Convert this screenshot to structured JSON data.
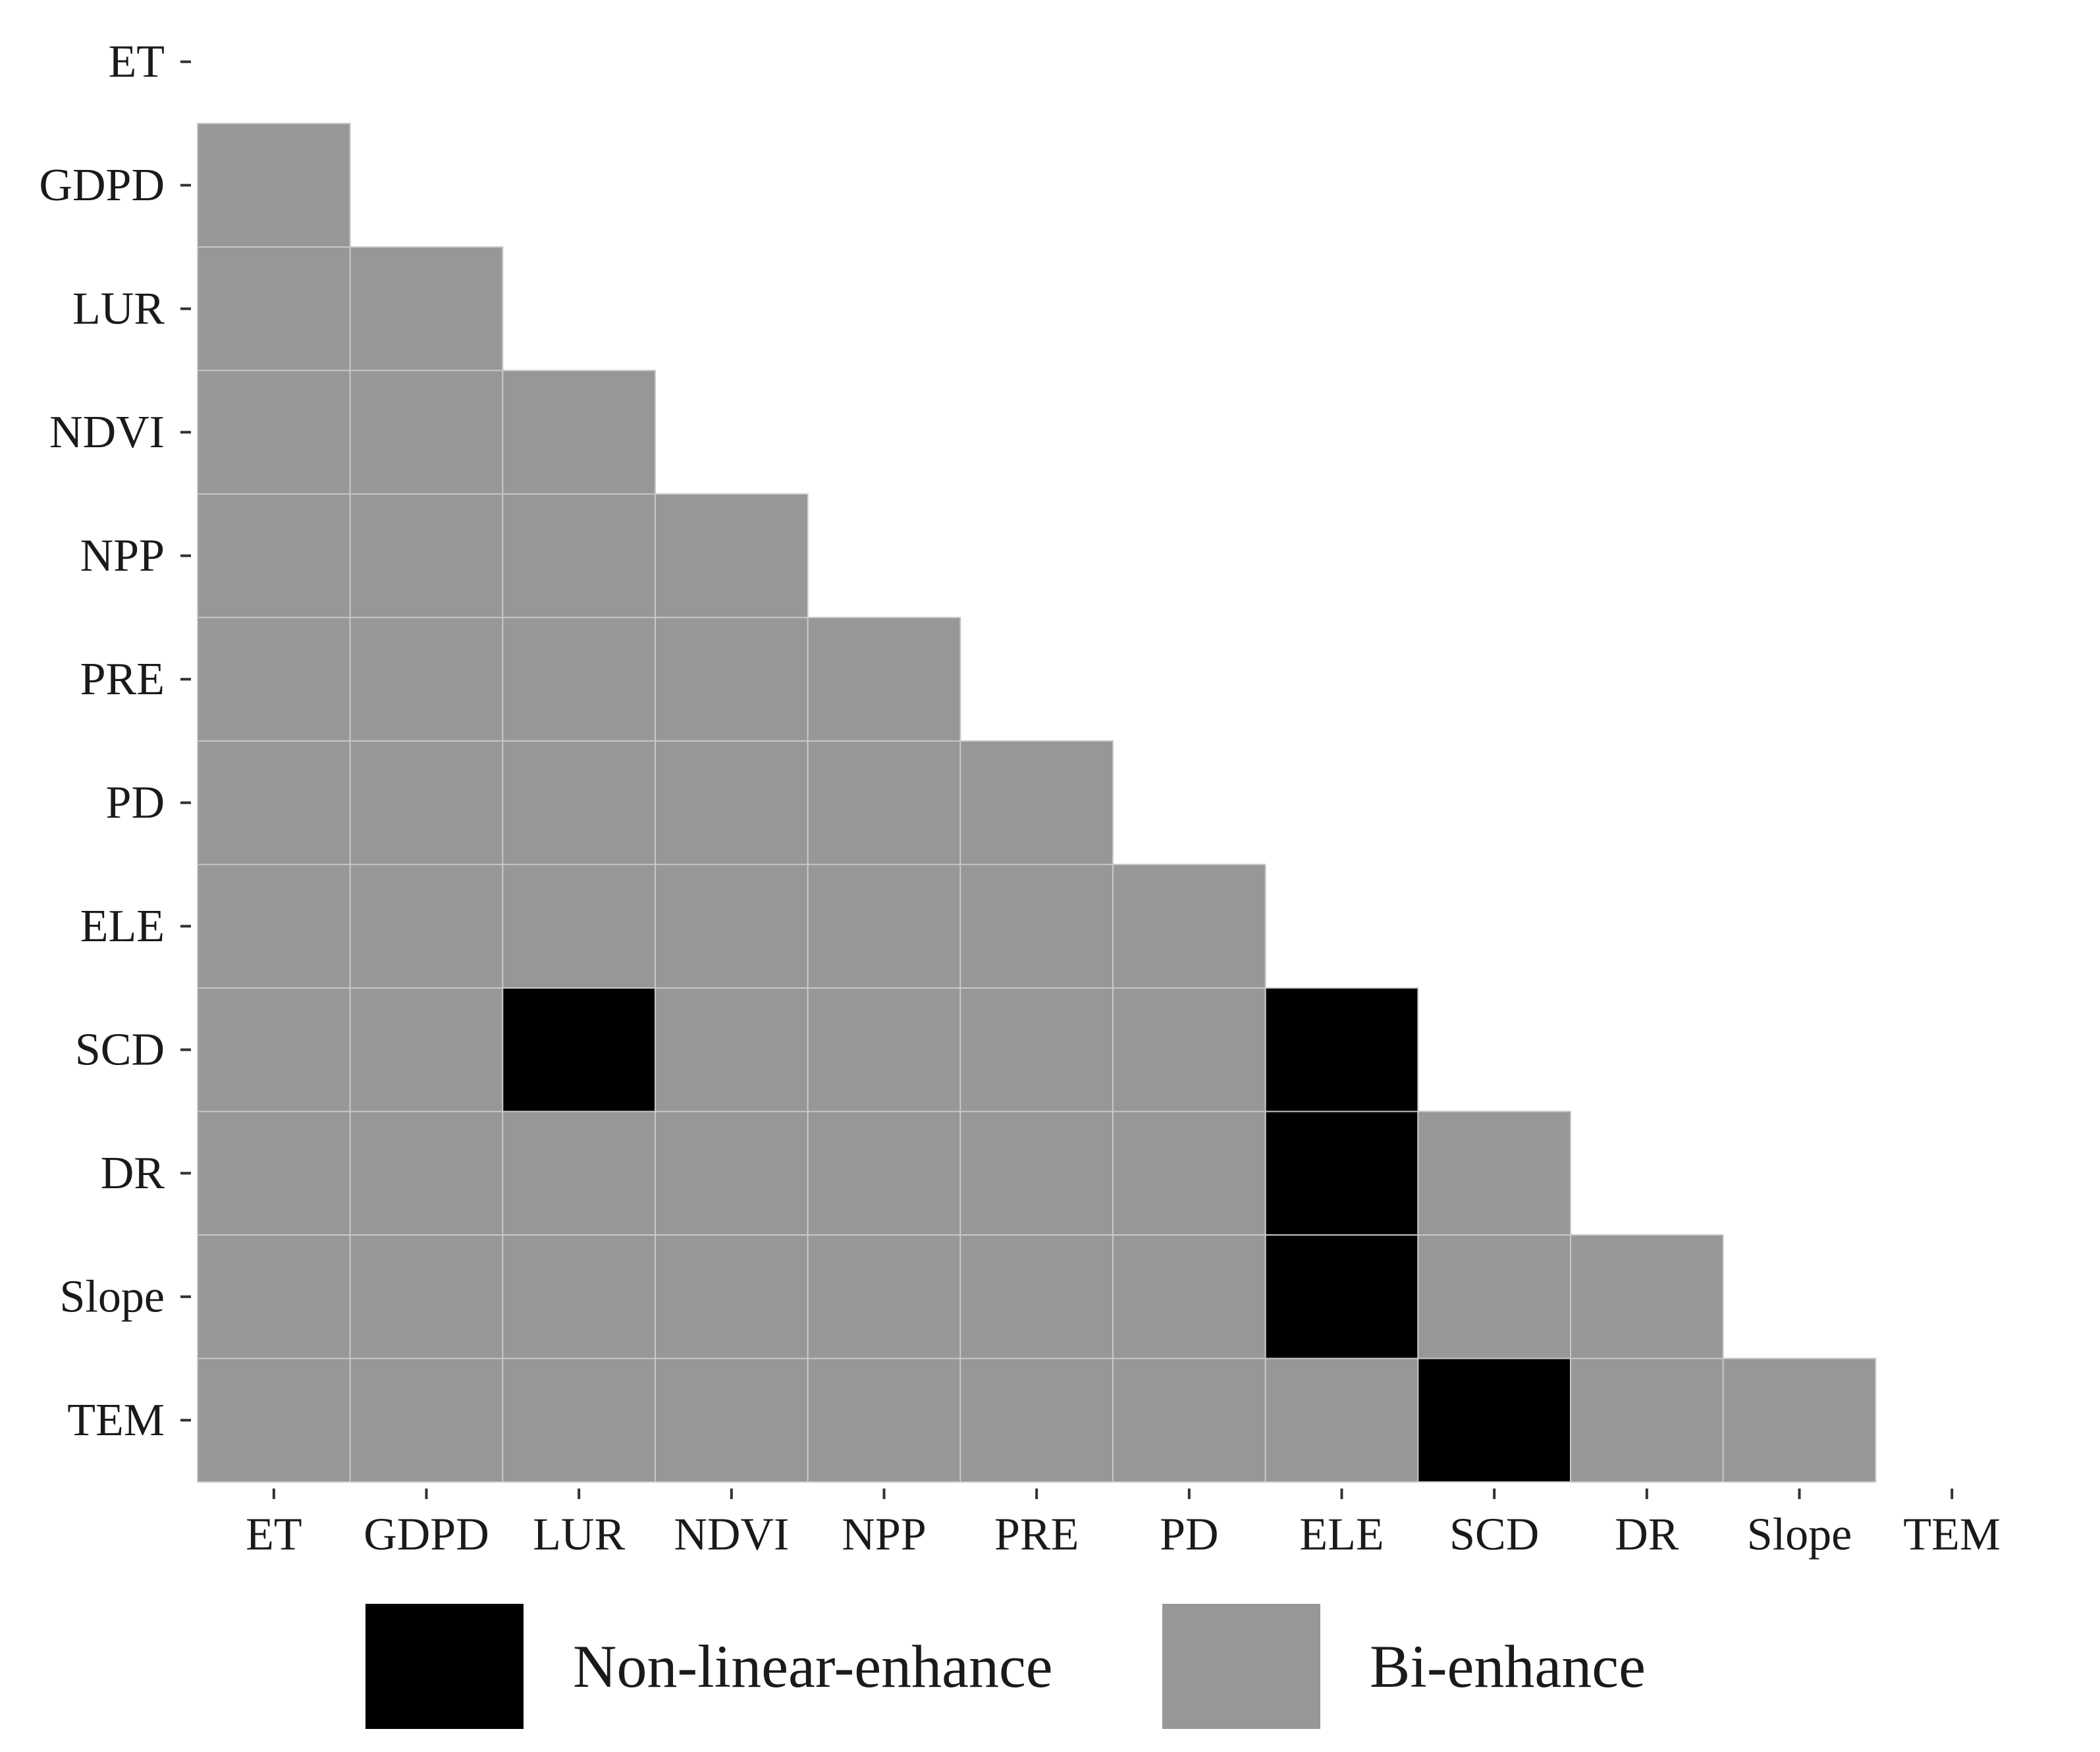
{
  "chart_data": {
    "type": "heatmap",
    "title": "",
    "xlabel": "",
    "ylabel": "",
    "x_categories": [
      "ET",
      "GDPD",
      "LUR",
      "NDVI",
      "NPP",
      "PRE",
      "PD",
      "ELE",
      "SCD",
      "DR",
      "Slope",
      "TEM"
    ],
    "y_categories": [
      "ET",
      "GDPD",
      "LUR",
      "NDVI",
      "NPP",
      "PRE",
      "PD",
      "ELE",
      "SCD",
      "DR",
      "Slope",
      "TEM"
    ],
    "categories": {
      "N": "Non-linear-enhance",
      "B": "Bi-enhance"
    },
    "colors": {
      "Non-linear-enhance": "#000000",
      "Bi-enhance": "#979797",
      "cell_border": "#c8c8c8"
    },
    "matrix": [
      [],
      [
        "B"
      ],
      [
        "B",
        "B"
      ],
      [
        "B",
        "B",
        "B"
      ],
      [
        "B",
        "B",
        "B",
        "B"
      ],
      [
        "B",
        "B",
        "B",
        "B",
        "B"
      ],
      [
        "B",
        "B",
        "B",
        "B",
        "B",
        "B"
      ],
      [
        "B",
        "B",
        "B",
        "B",
        "B",
        "B",
        "B"
      ],
      [
        "B",
        "B",
        "N",
        "B",
        "B",
        "B",
        "B",
        "N"
      ],
      [
        "B",
        "B",
        "B",
        "B",
        "B",
        "B",
        "B",
        "N",
        "B"
      ],
      [
        "B",
        "B",
        "B",
        "B",
        "B",
        "B",
        "B",
        "N",
        "B",
        "B"
      ],
      [
        "B",
        "B",
        "B",
        "B",
        "B",
        "B",
        "B",
        "B",
        "N",
        "B",
        "B"
      ]
    ],
    "legend": {
      "position": "bottom",
      "items": [
        "Non-linear-enhance",
        "Bi-enhance"
      ]
    },
    "grid": false
  }
}
